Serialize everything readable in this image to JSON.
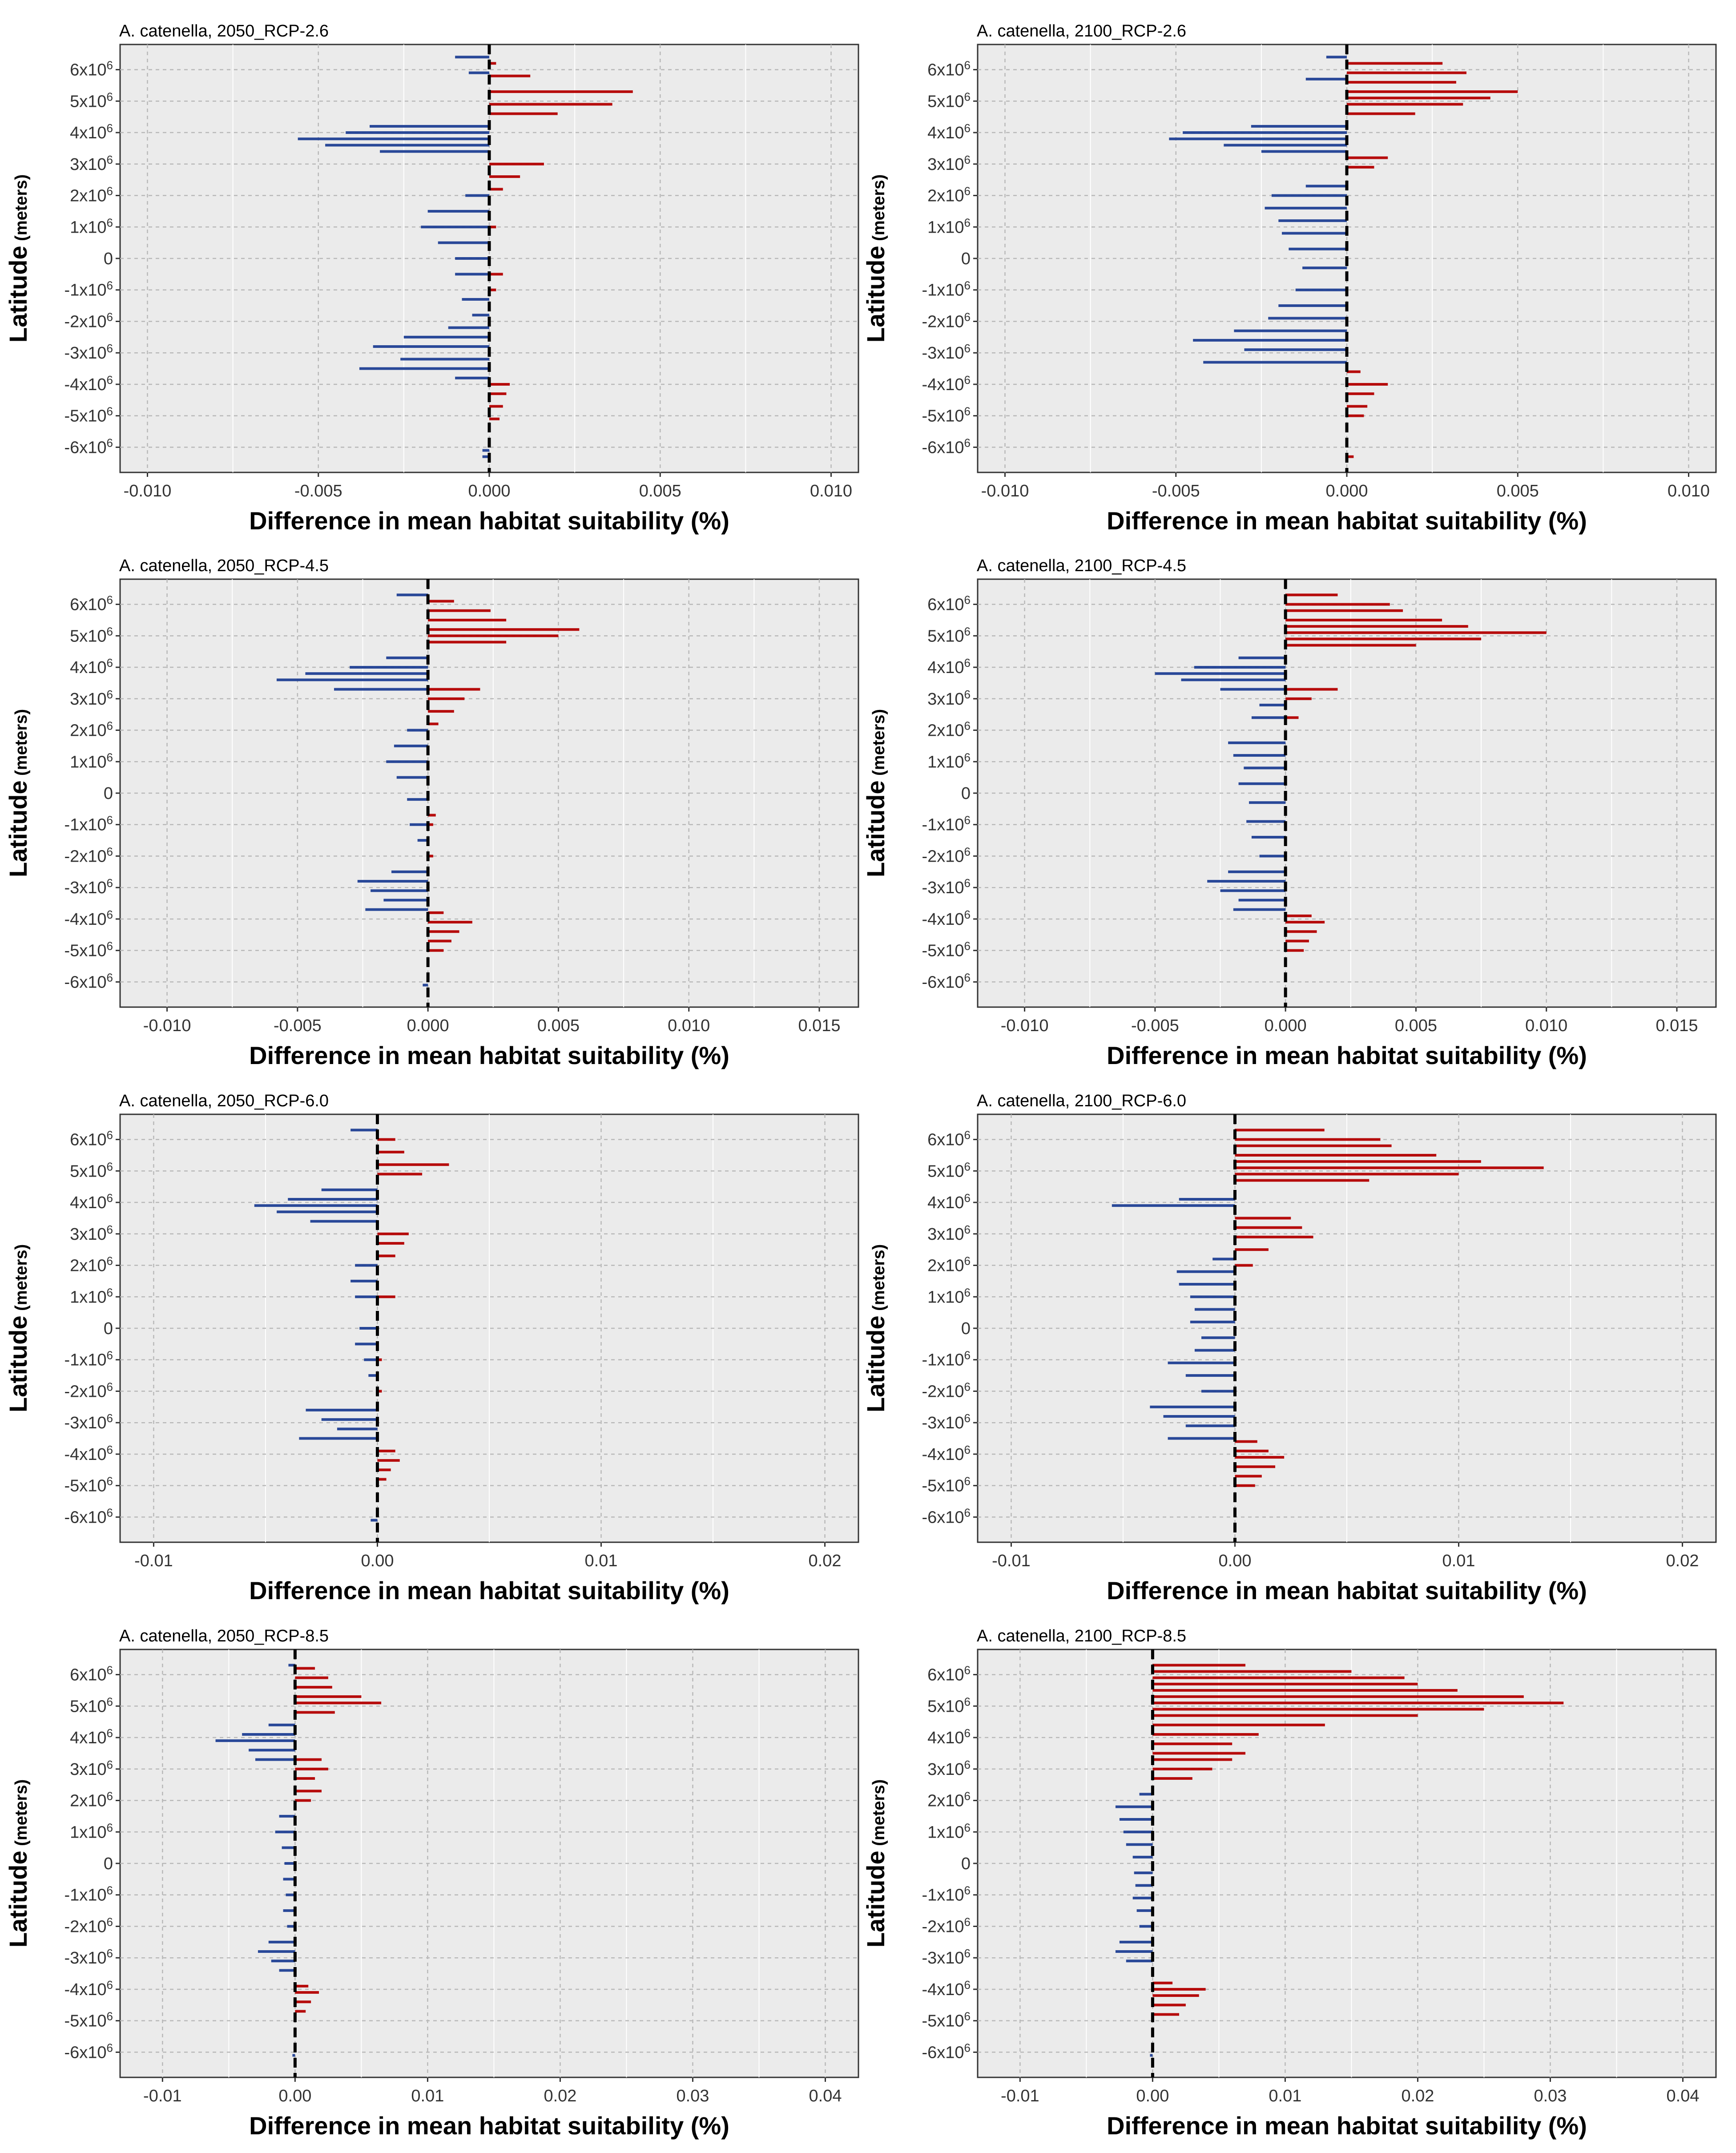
{
  "figure": {
    "colors": {
      "negative": "#1f3f94",
      "positive": "#b30000",
      "panel_bg": "#ebebeb",
      "zero_line": "#000000"
    }
  },
  "chart_data": [
    {
      "type": "bar",
      "orientation": "horizontal",
      "title": "A. catenella, 2050_RCP-2.6",
      "xlabel": "Difference in mean habitat suitability (%)",
      "ylabel": "Latitude",
      "ylabel_unit": "(meters)",
      "xlim": [
        -0.0108,
        0.0108
      ],
      "xticks": [
        -0.01,
        -0.005,
        0.0,
        0.005,
        0.01
      ],
      "xtick_labels": [
        "-0.010",
        "-0.005",
        "0.000",
        "0.005",
        "0.010"
      ],
      "series": [
        {
          "name": "positive",
          "latitude_m": [
            6200000.0,
            5800000.0,
            5300000.0,
            4900000.0,
            4600000.0,
            3000000.0,
            2600000.0,
            2200000.0,
            1000000.0,
            -500000.0,
            -1000000.0,
            -4000000.0,
            -4300000.0,
            -4700000.0,
            -5100000.0
          ],
          "values": [
            0.0002,
            0.0012,
            0.0042,
            0.0036,
            0.002,
            0.0016,
            0.0009,
            0.0004,
            0.0002,
            0.0004,
            0.0002,
            0.0006,
            0.0005,
            0.0004,
            0.0003
          ]
        },
        {
          "name": "negative",
          "latitude_m": [
            6400000.0,
            5900000.0,
            4200000.0,
            4000000.0,
            3800000.0,
            3600000.0,
            3400000.0,
            2000000.0,
            1500000.0,
            1000000.0,
            500000.0,
            0.0,
            -500000.0,
            -1300000.0,
            -1800000.0,
            -2200000.0,
            -2500000.0,
            -2800000.0,
            -3200000.0,
            -3500000.0,
            -3800000.0,
            -6100000.0,
            -6300000.0
          ],
          "values": [
            -0.001,
            -0.0006,
            -0.0035,
            -0.0042,
            -0.0056,
            -0.0048,
            -0.0032,
            -0.0007,
            -0.0018,
            -0.002,
            -0.0015,
            -0.001,
            -0.001,
            -0.0008,
            -0.0005,
            -0.0012,
            -0.0025,
            -0.0034,
            -0.0026,
            -0.0038,
            -0.001,
            -0.0002,
            -0.0002
          ]
        }
      ]
    },
    {
      "type": "bar",
      "orientation": "horizontal",
      "title": "A. catenella, 2100_RCP-2.6",
      "xlabel": "Difference in mean habitat suitability (%)",
      "ylabel": "Latitude",
      "ylabel_unit": "(meters)",
      "xlim": [
        -0.0108,
        0.0108
      ],
      "xticks": [
        -0.01,
        -0.005,
        0.0,
        0.005,
        0.01
      ],
      "xtick_labels": [
        "-0.010",
        "-0.005",
        "0.000",
        "0.005",
        "0.010"
      ],
      "series": [
        {
          "name": "positive",
          "latitude_m": [
            6200000.0,
            5900000.0,
            5600000.0,
            5300000.0,
            5100000.0,
            4900000.0,
            4600000.0,
            3200000.0,
            2900000.0,
            -3600000.0,
            -4000000.0,
            -4300000.0,
            -4700000.0,
            -5000000.0,
            -6300000.0
          ],
          "values": [
            0.0028,
            0.0035,
            0.0032,
            0.005,
            0.0042,
            0.0034,
            0.002,
            0.0012,
            0.0008,
            0.0004,
            0.0012,
            0.0008,
            0.0006,
            0.0005,
            0.0002
          ]
        },
        {
          "name": "negative",
          "latitude_m": [
            6400000.0,
            5700000.0,
            4200000.0,
            4000000.0,
            3800000.0,
            3600000.0,
            3400000.0,
            2300000.0,
            2000000.0,
            1600000.0,
            1200000.0,
            800000.0,
            300000.0,
            -300000.0,
            -1000000.0,
            -1500000.0,
            -1900000.0,
            -2300000.0,
            -2600000.0,
            -2900000.0,
            -3300000.0
          ],
          "values": [
            -0.0006,
            -0.0012,
            -0.0028,
            -0.0048,
            -0.0052,
            -0.0036,
            -0.0025,
            -0.0012,
            -0.0022,
            -0.0024,
            -0.002,
            -0.0019,
            -0.0017,
            -0.0013,
            -0.0015,
            -0.002,
            -0.0023,
            -0.0033,
            -0.0045,
            -0.003,
            -0.0042
          ]
        }
      ]
    },
    {
      "type": "bar",
      "orientation": "horizontal",
      "title": "A. catenella, 2050_RCP-4.5",
      "xlabel": "Difference in mean habitat suitability (%)",
      "ylabel": "Latitude",
      "ylabel_unit": "(meters)",
      "xlim": [
        -0.0118,
        0.0165
      ],
      "xticks": [
        -0.01,
        -0.005,
        0.0,
        0.005,
        0.01,
        0.015
      ],
      "xtick_labels": [
        "-0.010",
        "-0.005",
        "0.000",
        "0.005",
        "0.010",
        "0.015"
      ],
      "series": [
        {
          "name": "positive",
          "latitude_m": [
            6100000.0,
            5800000.0,
            5500000.0,
            5200000.0,
            5000000.0,
            4800000.0,
            3300000.0,
            3000000.0,
            2600000.0,
            2200000.0,
            -700000.0,
            -1000000.0,
            -2000000.0,
            -3800000.0,
            -4100000.0,
            -4400000.0,
            -4700000.0,
            -5000000.0
          ],
          "values": [
            0.001,
            0.0024,
            0.003,
            0.0058,
            0.005,
            0.003,
            0.002,
            0.0014,
            0.001,
            0.0004,
            0.0003,
            0.0002,
            0.0002,
            0.0006,
            0.0017,
            0.0012,
            0.0009,
            0.0006
          ]
        },
        {
          "name": "negative",
          "latitude_m": [
            6300000.0,
            4300000.0,
            4000000.0,
            3800000.0,
            3600000.0,
            3300000.0,
            2000000.0,
            1500000.0,
            1000000.0,
            500000.0,
            -200000.0,
            -1000000.0,
            -1500000.0,
            -2500000.0,
            -2800000.0,
            -3100000.0,
            -3400000.0,
            -3700000.0,
            -6100000.0
          ],
          "values": [
            -0.0012,
            -0.0016,
            -0.003,
            -0.0047,
            -0.0058,
            -0.0036,
            -0.0008,
            -0.0013,
            -0.0016,
            -0.0012,
            -0.0008,
            -0.0007,
            -0.0004,
            -0.0014,
            -0.0027,
            -0.0022,
            -0.0017,
            -0.0024,
            -0.0002
          ]
        }
      ]
    },
    {
      "type": "bar",
      "orientation": "horizontal",
      "title": "A. catenella, 2100_RCP-4.5",
      "xlabel": "Difference in mean habitat suitability (%)",
      "ylabel": "Latitude",
      "ylabel_unit": "(meters)",
      "xlim": [
        -0.0118,
        0.0165
      ],
      "xticks": [
        -0.01,
        -0.005,
        0.0,
        0.005,
        0.01,
        0.015
      ],
      "xtick_labels": [
        "-0.010",
        "-0.005",
        "0.000",
        "0.005",
        "0.010",
        "0.015"
      ],
      "series": [
        {
          "name": "positive",
          "latitude_m": [
            6300000.0,
            6000000.0,
            5800000.0,
            5500000.0,
            5300000.0,
            5100000.0,
            4900000.0,
            4700000.0,
            3300000.0,
            3000000.0,
            2400000.0,
            -3900000.0,
            -4100000.0,
            -4400000.0,
            -4700000.0,
            -5000000.0
          ],
          "values": [
            0.002,
            0.004,
            0.0045,
            0.006,
            0.007,
            0.01,
            0.0075,
            0.005,
            0.002,
            0.001,
            0.0005,
            0.001,
            0.0015,
            0.0012,
            0.0009,
            0.0007
          ]
        },
        {
          "name": "negative",
          "latitude_m": [
            4300000.0,
            4000000.0,
            3800000.0,
            3600000.0,
            3300000.0,
            2800000.0,
            2400000.0,
            1600000.0,
            1200000.0,
            800000.0,
            300000.0,
            -300000.0,
            -900000.0,
            -1400000.0,
            -2000000.0,
            -2500000.0,
            -2800000.0,
            -3100000.0,
            -3400000.0,
            -3700000.0
          ],
          "values": [
            -0.0018,
            -0.0035,
            -0.005,
            -0.004,
            -0.0025,
            -0.001,
            -0.0013,
            -0.0022,
            -0.002,
            -0.0016,
            -0.0018,
            -0.0014,
            -0.0015,
            -0.0013,
            -0.001,
            -0.0022,
            -0.003,
            -0.0025,
            -0.0018,
            -0.002
          ]
        }
      ]
    },
    {
      "type": "bar",
      "orientation": "horizontal",
      "title": "A. catenella, 2050_RCP-6.0",
      "xlabel": "Difference in mean habitat suitability (%)",
      "ylabel": "Latitude",
      "ylabel_unit": "(meters)",
      "xlim": [
        -0.0115,
        0.0215
      ],
      "xticks": [
        -0.01,
        0.0,
        0.01,
        0.02
      ],
      "xtick_labels": [
        "-0.01",
        "0.00",
        "0.01",
        "0.02"
      ],
      "series": [
        {
          "name": "positive",
          "latitude_m": [
            6000000.0,
            5600000.0,
            5200000.0,
            4900000.0,
            3000000.0,
            2700000.0,
            2300000.0,
            1000000.0,
            -1000000.0,
            -2000000.0,
            -3900000.0,
            -4200000.0,
            -4500000.0,
            -4800000.0
          ],
          "values": [
            0.0008,
            0.0012,
            0.0032,
            0.002,
            0.0014,
            0.0012,
            0.0008,
            0.0008,
            0.0002,
            0.0002,
            0.0008,
            0.001,
            0.0006,
            0.0004
          ]
        },
        {
          "name": "negative",
          "latitude_m": [
            6300000.0,
            4400000.0,
            4100000.0,
            3900000.0,
            3700000.0,
            3400000.0,
            2000000.0,
            1500000.0,
            1000000.0,
            0.0,
            -500000.0,
            -1000000.0,
            -1500000.0,
            -2600000.0,
            -2900000.0,
            -3200000.0,
            -3500000.0,
            -6100000.0
          ],
          "values": [
            -0.0012,
            -0.0025,
            -0.004,
            -0.0055,
            -0.0045,
            -0.003,
            -0.001,
            -0.0012,
            -0.001,
            -0.0008,
            -0.001,
            -0.0006,
            -0.0004,
            -0.0032,
            -0.0025,
            -0.0018,
            -0.0035,
            -0.0003
          ]
        }
      ]
    },
    {
      "type": "bar",
      "orientation": "horizontal",
      "title": "A. catenella, 2100_RCP-6.0",
      "xlabel": "Difference in mean habitat suitability (%)",
      "ylabel": "Latitude",
      "ylabel_unit": "(meters)",
      "xlim": [
        -0.0115,
        0.0215
      ],
      "xticks": [
        -0.01,
        0.0,
        0.01,
        0.02
      ],
      "xtick_labels": [
        "-0.01",
        "0.00",
        "0.01",
        "0.02"
      ],
      "series": [
        {
          "name": "positive",
          "latitude_m": [
            6300000.0,
            6000000.0,
            5800000.0,
            5500000.0,
            5300000.0,
            5100000.0,
            4900000.0,
            4700000.0,
            3500000.0,
            3200000.0,
            2900000.0,
            2500000.0,
            2000000.0,
            -3600000.0,
            -3900000.0,
            -4100000.0,
            -4400000.0,
            -4700000.0,
            -5000000.0
          ],
          "values": [
            0.004,
            0.0065,
            0.007,
            0.009,
            0.011,
            0.0138,
            0.01,
            0.006,
            0.0025,
            0.003,
            0.0035,
            0.0015,
            0.0008,
            0.001,
            0.0015,
            0.0022,
            0.0018,
            0.0012,
            0.0009
          ]
        },
        {
          "name": "negative",
          "latitude_m": [
            4100000.0,
            3900000.0,
            2200000.0,
            1800000.0,
            1400000.0,
            1000000.0,
            600000.0,
            200000.0,
            -300000.0,
            -700000.0,
            -1100000.0,
            -1500000.0,
            -2000000.0,
            -2500000.0,
            -2800000.0,
            -3100000.0,
            -3500000.0
          ],
          "values": [
            -0.0025,
            -0.0055,
            -0.001,
            -0.0026,
            -0.0025,
            -0.002,
            -0.0018,
            -0.002,
            -0.0015,
            -0.0018,
            -0.003,
            -0.0022,
            -0.0015,
            -0.0038,
            -0.0032,
            -0.0022,
            -0.003
          ]
        }
      ]
    },
    {
      "type": "bar",
      "orientation": "horizontal",
      "title": "A. catenella, 2050_RCP-8.5",
      "xlabel": "Difference in mean habitat suitability (%)",
      "ylabel": "Latitude",
      "ylabel_unit": "(meters)",
      "xlim": [
        -0.0132,
        0.0425
      ],
      "xticks": [
        -0.01,
        0.0,
        0.01,
        0.02,
        0.03,
        0.04
      ],
      "xtick_labels": [
        "-0.01",
        "0.00",
        "0.01",
        "0.02",
        "0.03",
        "0.04"
      ],
      "series": [
        {
          "name": "positive",
          "latitude_m": [
            6200000.0,
            5900000.0,
            5600000.0,
            5300000.0,
            5100000.0,
            4800000.0,
            3300000.0,
            3000000.0,
            2700000.0,
            2300000.0,
            2000000.0,
            -3900000.0,
            -4100000.0,
            -4400000.0,
            -4700000.0
          ],
          "values": [
            0.0015,
            0.0025,
            0.0028,
            0.005,
            0.0065,
            0.003,
            0.002,
            0.0025,
            0.0015,
            0.002,
            0.0012,
            0.001,
            0.0018,
            0.0012,
            0.0008
          ]
        },
        {
          "name": "negative",
          "latitude_m": [
            6300000.0,
            4400000.0,
            4100000.0,
            3900000.0,
            3600000.0,
            3300000.0,
            1500000.0,
            1000000.0,
            500000.0,
            0.0,
            -500000.0,
            -1000000.0,
            -1500000.0,
            -2000000.0,
            -2500000.0,
            -2800000.0,
            -3100000.0,
            -3400000.0,
            -6100000.0
          ],
          "values": [
            -0.0005,
            -0.002,
            -0.004,
            -0.006,
            -0.0035,
            -0.003,
            -0.0012,
            -0.0015,
            -0.001,
            -0.0008,
            -0.0009,
            -0.0007,
            -0.0009,
            -0.0006,
            -0.002,
            -0.0028,
            -0.0018,
            -0.0012,
            -0.0002
          ]
        }
      ]
    },
    {
      "type": "bar",
      "orientation": "horizontal",
      "title": "A. catenella, 2100_RCP-8.5",
      "xlabel": "Difference in mean habitat suitability (%)",
      "ylabel": "Latitude",
      "ylabel_unit": "(meters)",
      "xlim": [
        -0.0132,
        0.0425
      ],
      "xticks": [
        -0.01,
        0.0,
        0.01,
        0.02,
        0.03,
        0.04
      ],
      "xtick_labels": [
        "-0.01",
        "0.00",
        "0.01",
        "0.02",
        "0.03",
        "0.04"
      ],
      "series": [
        {
          "name": "positive",
          "latitude_m": [
            6300000.0,
            6100000.0,
            5900000.0,
            5700000.0,
            5500000.0,
            5300000.0,
            5100000.0,
            4900000.0,
            4700000.0,
            4400000.0,
            4100000.0,
            3800000.0,
            3500000.0,
            3300000.0,
            3000000.0,
            2700000.0,
            -3800000.0,
            -4000000.0,
            -4200000.0,
            -4500000.0,
            -4800000.0
          ],
          "values": [
            0.007,
            0.015,
            0.019,
            0.02,
            0.023,
            0.028,
            0.031,
            0.025,
            0.02,
            0.013,
            0.008,
            0.006,
            0.007,
            0.006,
            0.0045,
            0.003,
            0.0015,
            0.004,
            0.0035,
            0.0025,
            0.002
          ]
        },
        {
          "name": "negative",
          "latitude_m": [
            2200000.0,
            1800000.0,
            1400000.0,
            1000000.0,
            600000.0,
            200000.0,
            -300000.0,
            -700000.0,
            -1100000.0,
            -1500000.0,
            -2000000.0,
            -2500000.0,
            -2800000.0,
            -3100000.0,
            -6100000.0
          ],
          "values": [
            -0.001,
            -0.0028,
            -0.0025,
            -0.0022,
            -0.002,
            -0.0015,
            -0.0014,
            -0.0013,
            -0.0015,
            -0.0012,
            -0.001,
            -0.0025,
            -0.0028,
            -0.002,
            -0.0002
          ]
        }
      ]
    }
  ]
}
